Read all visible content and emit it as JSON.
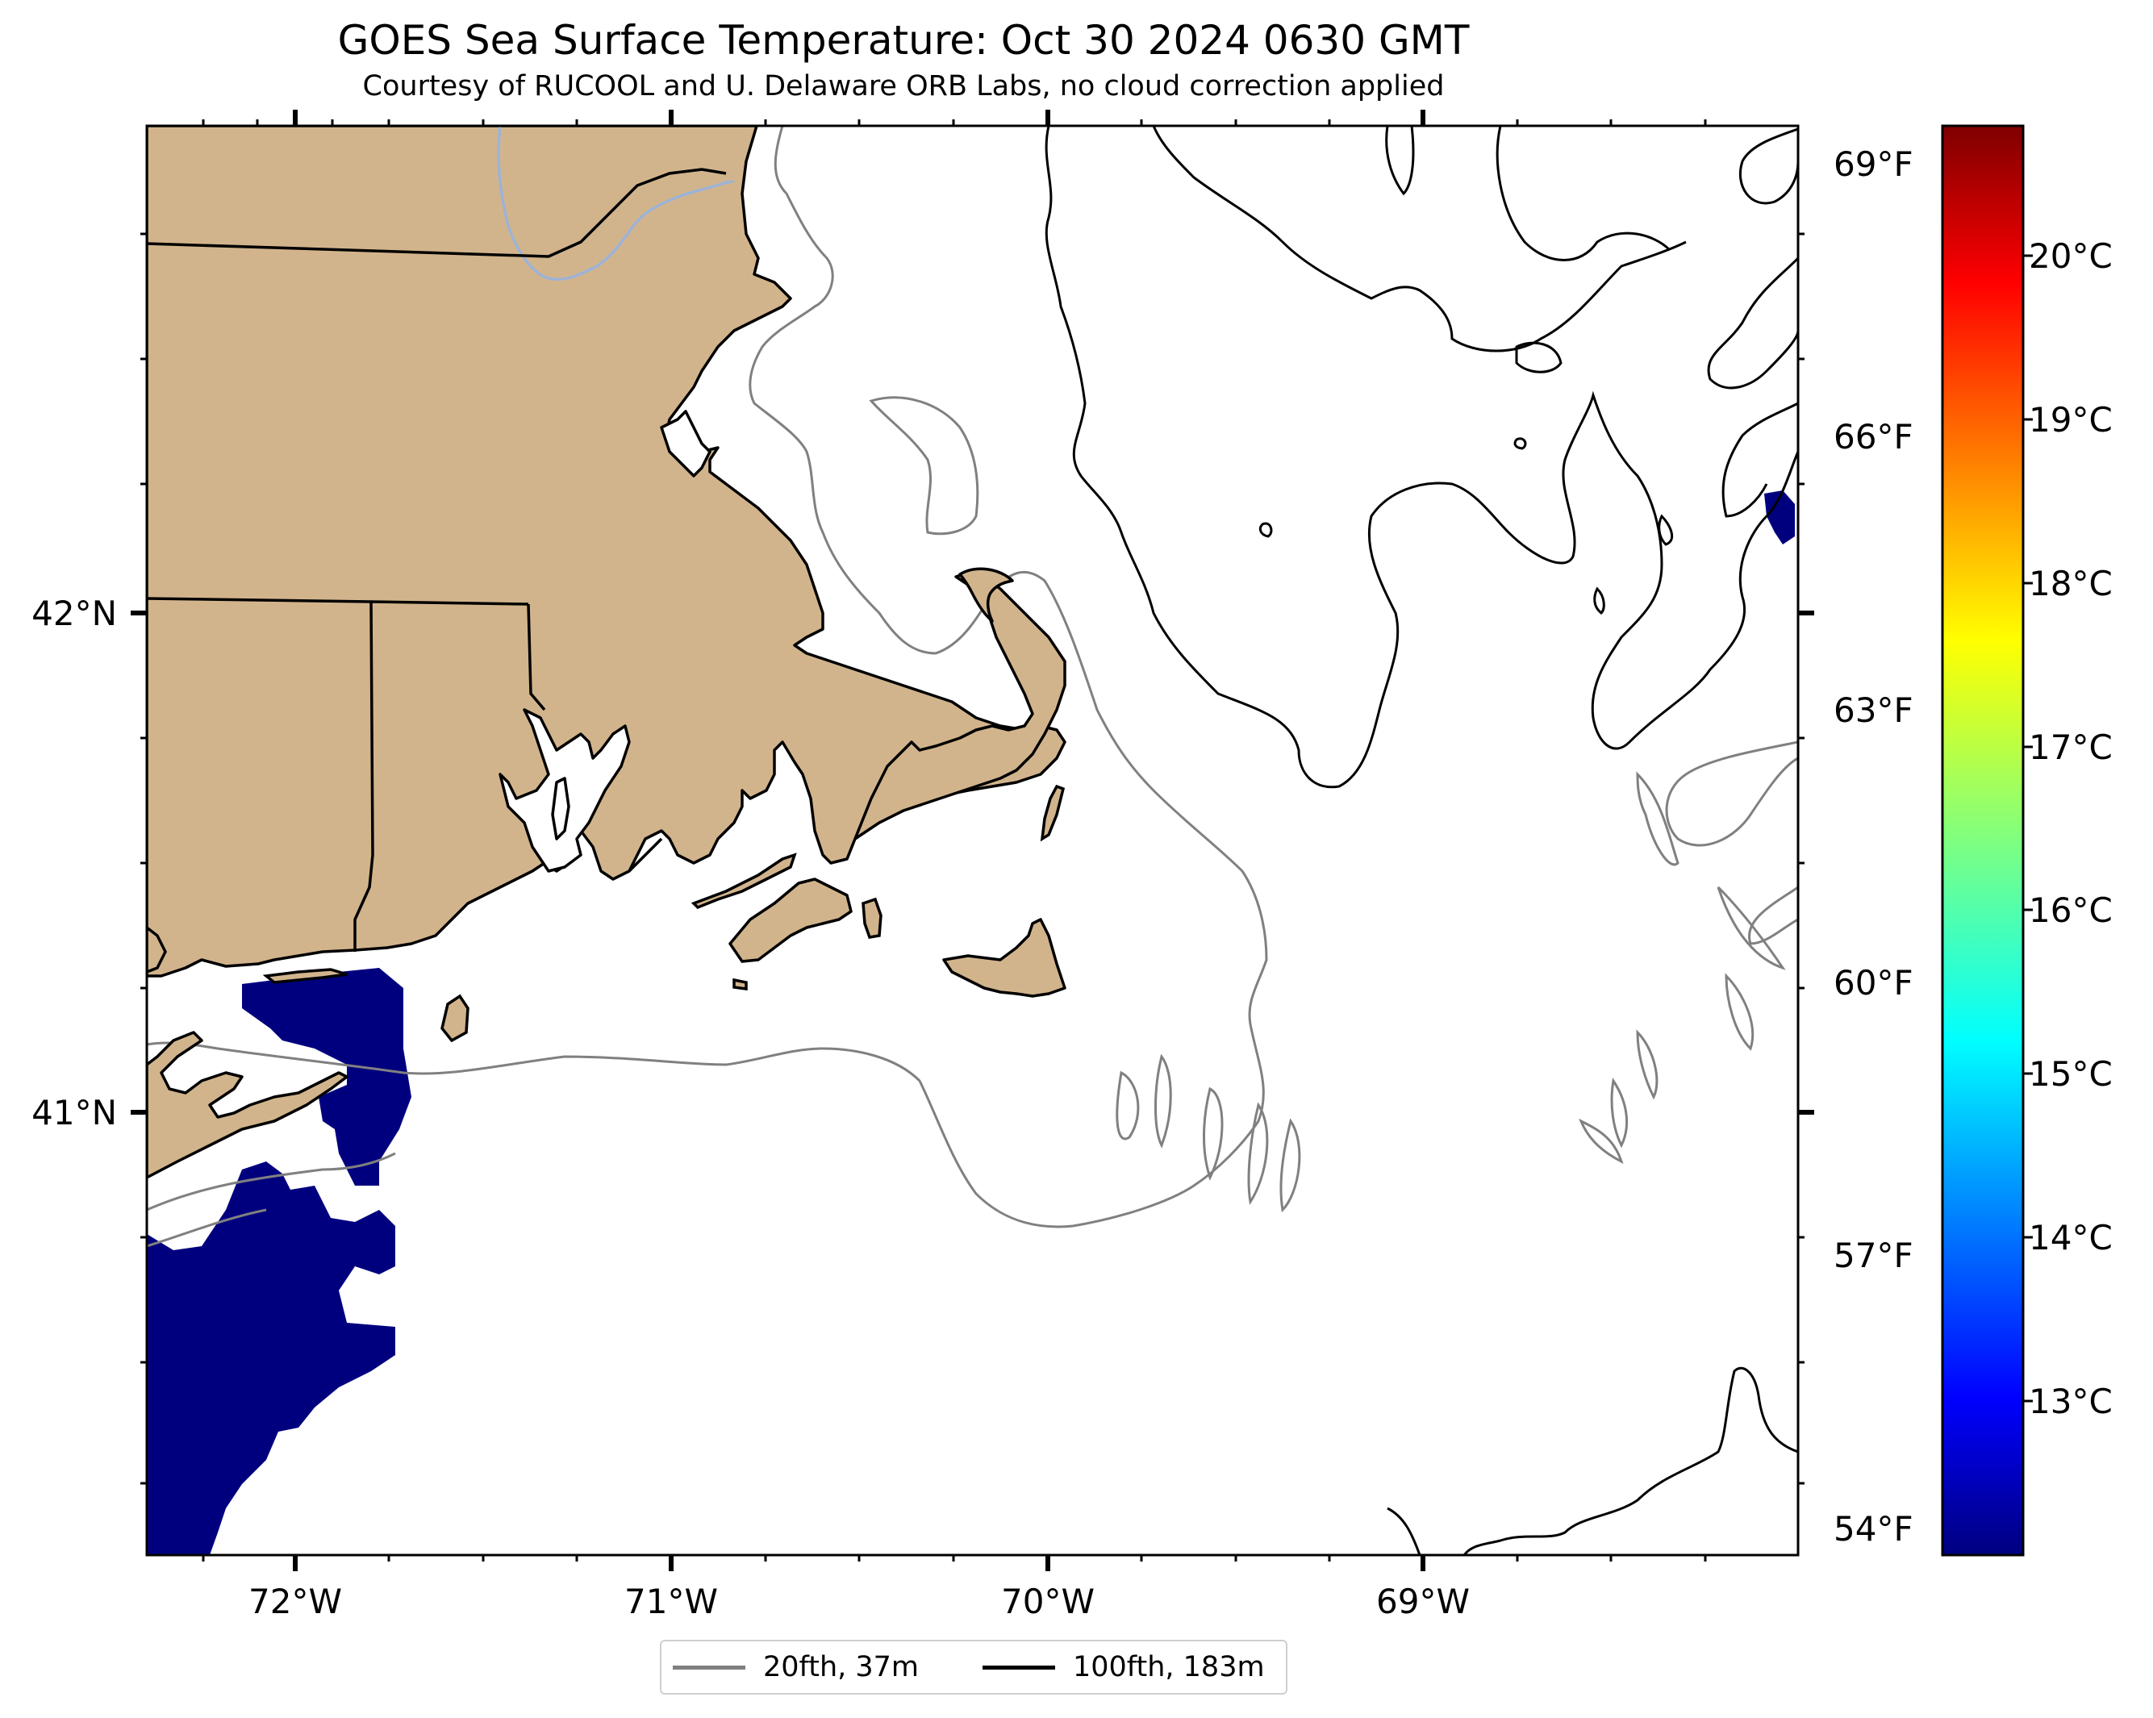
{
  "map": {
    "title": "GOES Sea Surface Temperature: Oct 30 2024 0630 GMT",
    "subtitle": "Courtesy of RUCOOL and U. Delaware ORB Labs, no cloud correction applied",
    "longitude_labels": [
      "72°W",
      "71°W",
      "70°W",
      "69°W"
    ],
    "latitude_labels": [
      "42°N",
      "41°N"
    ],
    "land_color": "#d2b48c",
    "coast_color": "#000000",
    "river_color": "#9db3d6",
    "sst_min_color": "#00007f"
  },
  "colorbar": {
    "fahrenheit_labels": [
      "69°F",
      "66°F",
      "63°F",
      "60°F",
      "57°F",
      "54°F"
    ],
    "celsius_labels": [
      "20°C",
      "19°C",
      "18°C",
      "17°C",
      "16°C",
      "15°C",
      "14°C",
      "13°C"
    ],
    "colormap": "jet"
  },
  "legend": {
    "items": [
      {
        "label": "20fth, 37m",
        "color": "#808080"
      },
      {
        "label": "100fth, 183m",
        "color": "#000000"
      }
    ]
  }
}
